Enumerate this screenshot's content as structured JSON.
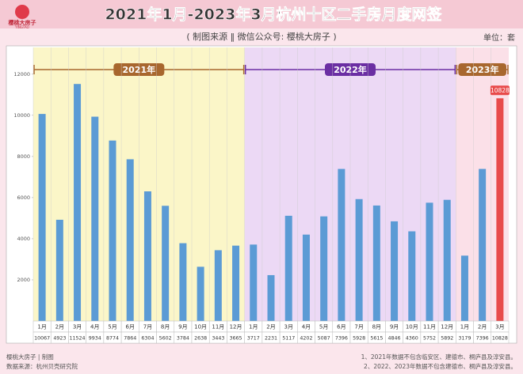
{
  "logo": {
    "name": "樱桃大房子",
    "sub": "YINGTAO"
  },
  "chart_data": {
    "type": "bar",
    "title": "2021年1月-2023年3月杭州十区二手房月度网签",
    "subtitle": "( 制图来源 ‖ 微信公众号: 樱桃大房子 )",
    "unit": "单位：套",
    "categories": [
      "1月",
      "2月",
      "3月",
      "4月",
      "5月",
      "6月",
      "7月",
      "8月",
      "9月",
      "10月",
      "11月",
      "12月",
      "1月",
      "2月",
      "3月",
      "4月",
      "5月",
      "6月",
      "7月",
      "8月",
      "9月",
      "10月",
      "11月",
      "12月",
      "1月",
      "2月",
      "3月"
    ],
    "values": [
      10067,
      4923,
      11524,
      9934,
      8774,
      7864,
      6304,
      5602,
      3784,
      2638,
      3443,
      3665,
      3717,
      2231,
      5117,
      4202,
      5087,
      7396,
      5928,
      5615,
      4846,
      4360,
      5752,
      5892,
      3179,
      7396,
      10828
    ],
    "colors": [
      "#5b9bd5",
      "#5b9bd5",
      "#5b9bd5",
      "#5b9bd5",
      "#5b9bd5",
      "#5b9bd5",
      "#5b9bd5",
      "#5b9bd5",
      "#5b9bd5",
      "#5b9bd5",
      "#5b9bd5",
      "#5b9bd5",
      "#5b9bd5",
      "#5b9bd5",
      "#5b9bd5",
      "#5b9bd5",
      "#5b9bd5",
      "#5b9bd5",
      "#5b9bd5",
      "#5b9bd5",
      "#5b9bd5",
      "#5b9bd5",
      "#5b9bd5",
      "#5b9bd5",
      "#5b9bd5",
      "#5b9bd5",
      "#e84a4a"
    ],
    "groups": [
      {
        "label": "2021年",
        "count": 12,
        "color": "#a8672e",
        "background": "#fbf6c8"
      },
      {
        "label": "2022年",
        "count": 12,
        "color": "#6b2ea3",
        "background": "#ecd9f5"
      },
      {
        "label": "2023年",
        "count": 3,
        "color": "#a8672e",
        "background": "#fbe0e8"
      }
    ],
    "ylim": [
      0,
      13300
    ],
    "yticks": [
      2000,
      4000,
      6000,
      8000,
      10000,
      12000
    ],
    "grid": false
  },
  "footer": {
    "credit": "樱桃大房子 | 制图",
    "source": "数据来源：杭州贝壳研究院",
    "notes": [
      "1、2021年数据不包含临安区、建德市、桐庐县及淳安县。",
      "2、2022、2023年数据不包含建德市、桐庐县及淳安县。"
    ]
  }
}
